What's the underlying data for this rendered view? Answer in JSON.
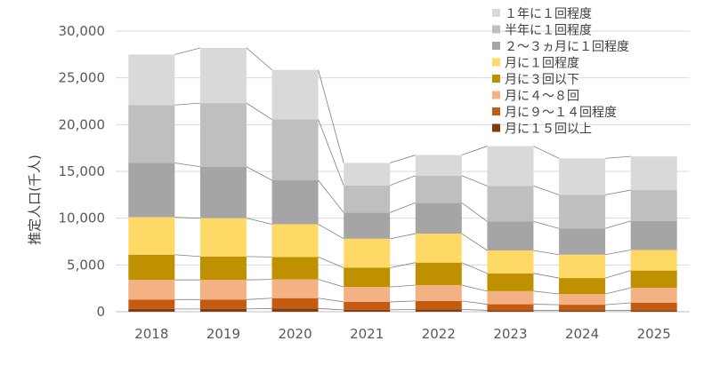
{
  "chart_data": {
    "type": "bar",
    "stacked": true,
    "ylabel": "推定人口(千人)",
    "ylim": [
      0,
      30000
    ],
    "yticks": [
      0,
      5000,
      10000,
      15000,
      20000,
      25000,
      30000
    ],
    "ytick_labels": [
      "0",
      "5,000",
      "10,000",
      "15,000",
      "20,000",
      "25,000",
      "30,000"
    ],
    "categories": [
      "2018",
      "2019",
      "2020",
      "2021",
      "2022",
      "2023",
      "2024",
      "2025"
    ],
    "legend_position": "top-right",
    "series_lines": true,
    "series": [
      {
        "name": "月に１５回以上",
        "color": "#843c0c",
        "values": [
          300,
          300,
          350,
          200,
          250,
          150,
          150,
          150
        ]
      },
      {
        "name": "月に９～１４回程度",
        "color": "#c55a11",
        "values": [
          1000,
          1000,
          1100,
          850,
          900,
          650,
          600,
          800
        ]
      },
      {
        "name": "月に４～８回",
        "color": "#f4b183",
        "values": [
          2100,
          2100,
          2000,
          1600,
          1700,
          1400,
          1150,
          1600
        ]
      },
      {
        "name": "月に３回以下",
        "color": "#bf9000",
        "values": [
          2700,
          2500,
          2400,
          2050,
          2400,
          1900,
          1700,
          1850
        ]
      },
      {
        "name": "月に１回程度",
        "color": "#ffd966",
        "values": [
          4000,
          4100,
          3500,
          3100,
          3100,
          2450,
          2500,
          2200
        ]
      },
      {
        "name": "２～３ヵ月に１回程度",
        "color": "#a5a5a5",
        "values": [
          5800,
          5500,
          4700,
          2800,
          3300,
          3100,
          2800,
          3100
        ]
      },
      {
        "name": "半年に１回程度",
        "color": "#bfbfbf",
        "values": [
          6200,
          6800,
          6500,
          2900,
          2900,
          3800,
          3600,
          3300
        ]
      },
      {
        "name": "１年に１回程度",
        "color": "#d9d9d9",
        "values": [
          5400,
          5900,
          5300,
          2400,
          2200,
          4250,
          3900,
          3600
        ]
      }
    ]
  }
}
